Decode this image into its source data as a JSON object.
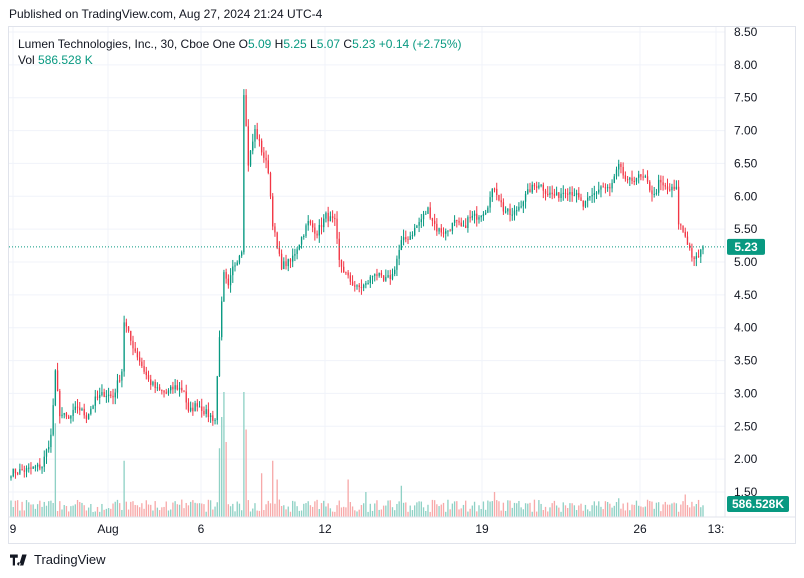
{
  "published": "Published on TradingView.com, Aug 27, 2024 21:24 UTC-4",
  "legend": {
    "symbol": "Lumen Technologies, Inc., 30, Cboe One",
    "o_label": "O",
    "o_value": "5.09",
    "h_label": "H",
    "h_value": "5.25",
    "l_label": "L",
    "l_value": "5.07",
    "c_label": "C",
    "c_value": "5.23",
    "change": "+0.14 (+2.75%)",
    "vol_label": "Vol",
    "vol_value": "586.528 K"
  },
  "footer": {
    "brand": "TradingView",
    "logo_icon": "tradingview-logo-icon"
  },
  "colors": {
    "up": "#089981",
    "down": "#f23645",
    "up_vol": "#8fd1c5",
    "down_vol": "#f7a9a9",
    "grid": "#f0f3fa",
    "last_line": "#089981"
  },
  "chart_data": {
    "type": "candlestick",
    "title": "Lumen Technologies, Inc., 30, Cboe One",
    "xlabel": "",
    "ylabel": "",
    "ylim": [
      1.4,
      8.55
    ],
    "y_ticks": [
      "8.50",
      "8.00",
      "7.50",
      "7.00",
      "6.50",
      "6.00",
      "5.50",
      "5.00",
      "4.50",
      "4.00",
      "3.50",
      "3.00",
      "2.50",
      "2.00",
      "1.50"
    ],
    "x_ticks": [
      "9",
      "Aug",
      "6",
      "12",
      "19",
      "26",
      "13:"
    ],
    "last_price": "5.23",
    "last_volume": "586.528K",
    "anchors": [
      [
        0,
        1.8
      ],
      [
        8,
        1.84
      ],
      [
        14,
        1.9
      ],
      [
        18,
        2.35
      ],
      [
        20,
        3.3
      ],
      [
        22,
        2.7
      ],
      [
        26,
        2.6
      ],
      [
        30,
        2.8
      ],
      [
        34,
        2.65
      ],
      [
        38,
        2.9
      ],
      [
        42,
        3.0
      ],
      [
        46,
        2.95
      ],
      [
        50,
        3.35
      ],
      [
        51,
        4.1
      ],
      [
        54,
        3.8
      ],
      [
        58,
        3.5
      ],
      [
        62,
        3.2
      ],
      [
        66,
        3.05
      ],
      [
        70,
        3.0
      ],
      [
        74,
        3.1
      ],
      [
        78,
        3.05
      ],
      [
        80,
        2.7
      ],
      [
        84,
        2.85
      ],
      [
        88,
        2.7
      ],
      [
        92,
        2.6
      ],
      [
        94,
        3.9
      ],
      [
        96,
        4.8
      ],
      [
        98,
        4.6
      ],
      [
        100,
        4.9
      ],
      [
        104,
        5.2
      ],
      [
        105,
        7.6
      ],
      [
        107,
        6.5
      ],
      [
        110,
        7.0
      ],
      [
        113,
        6.7
      ],
      [
        116,
        6.4
      ],
      [
        118,
        5.6
      ],
      [
        120,
        5.2
      ],
      [
        122,
        4.95
      ],
      [
        126,
        5.0
      ],
      [
        130,
        5.3
      ],
      [
        134,
        5.6
      ],
      [
        138,
        5.45
      ],
      [
        142,
        5.7
      ],
      [
        146,
        5.6
      ],
      [
        148,
        5.0
      ],
      [
        152,
        4.75
      ],
      [
        156,
        4.6
      ],
      [
        160,
        4.65
      ],
      [
        164,
        4.85
      ],
      [
        168,
        4.7
      ],
      [
        172,
        4.8
      ],
      [
        176,
        5.3
      ],
      [
        180,
        5.4
      ],
      [
        184,
        5.6
      ],
      [
        188,
        5.8
      ],
      [
        192,
        5.5
      ],
      [
        196,
        5.45
      ],
      [
        200,
        5.6
      ],
      [
        204,
        5.5
      ],
      [
        206,
        5.65
      ],
      [
        210,
        5.7
      ],
      [
        214,
        5.8
      ],
      [
        218,
        6.15
      ],
      [
        222,
        5.8
      ],
      [
        226,
        5.7
      ],
      [
        230,
        5.9
      ],
      [
        234,
        6.1
      ],
      [
        238,
        6.2
      ],
      [
        242,
        6.05
      ],
      [
        246,
        6.0
      ],
      [
        250,
        6.1
      ],
      [
        254,
        6.05
      ],
      [
        258,
        5.85
      ],
      [
        262,
        6.0
      ],
      [
        266,
        6.15
      ],
      [
        270,
        6.1
      ],
      [
        274,
        6.45
      ],
      [
        278,
        6.2
      ],
      [
        282,
        6.3
      ],
      [
        286,
        6.25
      ],
      [
        290,
        6.0
      ],
      [
        292,
        6.2
      ],
      [
        296,
        6.1
      ],
      [
        300,
        6.1
      ],
      [
        301,
        5.6
      ],
      [
        304,
        5.4
      ],
      [
        308,
        5.0
      ],
      [
        310,
        5.1
      ],
      [
        312,
        5.23
      ]
    ],
    "volume_spikes": [
      [
        20,
        0.75
      ],
      [
        51,
        0.45
      ],
      [
        94,
        0.55
      ],
      [
        95,
        0.8
      ],
      [
        96,
        1.0
      ],
      [
        97,
        0.6
      ],
      [
        105,
        1.0
      ],
      [
        106,
        0.7
      ],
      [
        113,
        0.35
      ],
      [
        118,
        0.45
      ],
      [
        120,
        0.3
      ],
      [
        152,
        0.3
      ],
      [
        160,
        0.2
      ],
      [
        176,
        0.25
      ],
      [
        218,
        0.2
      ],
      [
        274,
        0.15
      ],
      [
        304,
        0.18
      ]
    ]
  }
}
